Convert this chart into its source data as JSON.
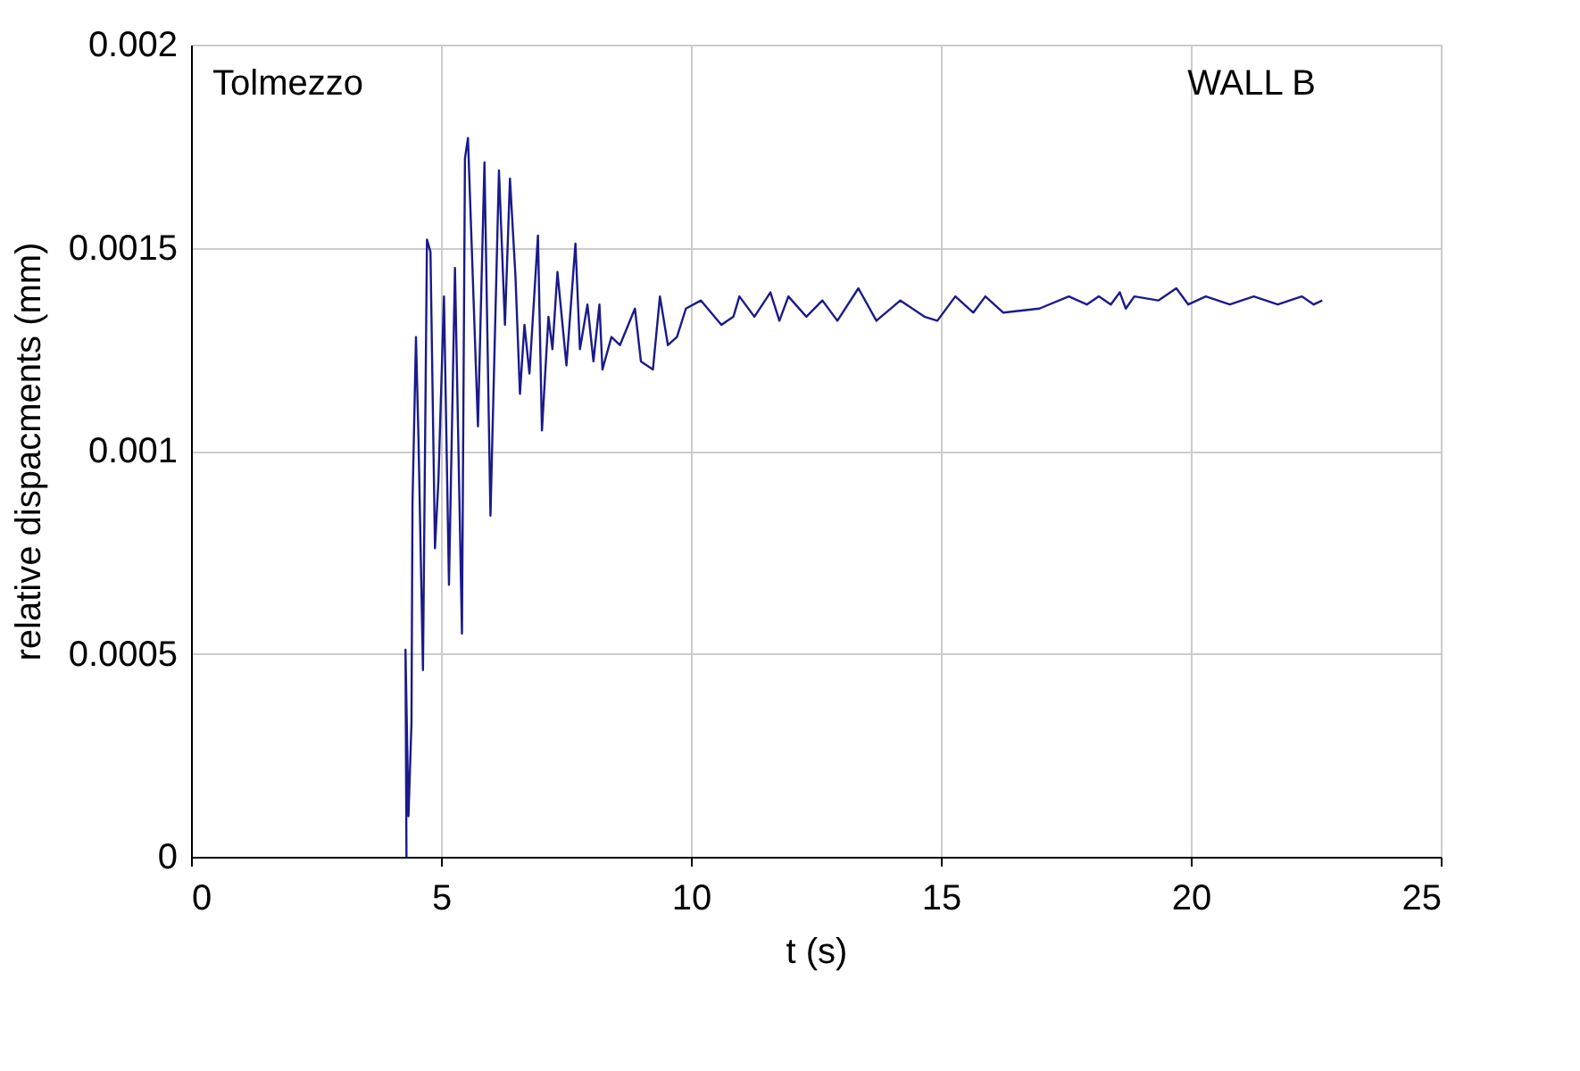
{
  "chart_data": {
    "type": "line",
    "xlabel": "t (s)",
    "ylabel": "relative dispacments (mm)",
    "annotations": [
      "Tolmezzo",
      "WALL B"
    ],
    "xlim": [
      0,
      25
    ],
    "xticks": [
      0,
      5,
      10,
      15,
      20,
      25
    ],
    "ylim": [
      0,
      0.002
    ],
    "yticks": [
      0,
      0.0005,
      0.001,
      0.0015,
      0.002
    ],
    "grid": true,
    "marker": "none",
    "line_style": "solid",
    "series": [
      {
        "color": "#1a1a8c",
        "x": [
          4.31,
          4.29,
          4.35,
          4.41,
          4.43,
          4.5,
          4.55,
          4.64,
          4.72,
          4.79,
          4.88,
          4.95,
          5.06,
          5.16,
          5.28,
          5.42,
          5.48,
          5.54,
          5.74,
          5.87,
          5.99,
          6.16,
          6.28,
          6.38,
          6.49,
          6.58,
          6.67,
          6.77,
          6.94,
          7.02,
          7.15,
          7.23,
          7.33,
          7.51,
          7.69,
          7.78,
          7.93,
          8.05,
          8.17,
          8.23,
          8.41,
          8.58,
          8.88,
          9.0,
          9.24,
          9.38,
          9.54,
          9.72,
          9.9,
          10.2,
          10.61,
          10.85,
          10.97,
          11.27,
          11.59,
          11.77,
          11.95,
          12.31,
          12.63,
          12.93,
          13.35,
          13.71,
          14.19,
          14.67,
          14.93,
          15.29,
          15.65,
          15.89,
          16.25,
          16.97,
          17.56,
          17.92,
          18.16,
          18.4,
          18.58,
          18.7,
          18.87,
          19.35,
          19.71,
          19.95,
          20.3,
          20.78,
          21.26,
          21.74,
          22.22,
          22.46,
          22.63
        ],
        "values": [
          0,
          0.00051,
          0.0001,
          0.00033,
          0.00087,
          0.00128,
          0.00103,
          0.00046,
          0.00152,
          0.00149,
          0.00076,
          0.00093,
          0.00138,
          0.00067,
          0.00145,
          0.00055,
          0.00172,
          0.00177,
          0.00106,
          0.00171,
          0.00084,
          0.00169,
          0.00131,
          0.00167,
          0.00143,
          0.00114,
          0.00131,
          0.00119,
          0.00153,
          0.00105,
          0.00133,
          0.00125,
          0.00144,
          0.00121,
          0.00151,
          0.00125,
          0.00136,
          0.00122,
          0.00136,
          0.0012,
          0.00128,
          0.00126,
          0.00135,
          0.00122,
          0.0012,
          0.00138,
          0.00126,
          0.00128,
          0.00135,
          0.00137,
          0.00131,
          0.00133,
          0.00138,
          0.00133,
          0.00139,
          0.00132,
          0.00138,
          0.00133,
          0.00137,
          0.00132,
          0.0014,
          0.00132,
          0.00137,
          0.00133,
          0.00132,
          0.00138,
          0.00134,
          0.00138,
          0.00134,
          0.00135,
          0.00138,
          0.00136,
          0.00138,
          0.00136,
          0.00139,
          0.00135,
          0.00138,
          0.00137,
          0.0014,
          0.00136,
          0.00138,
          0.00136,
          0.00138,
          0.00136,
          0.00138,
          0.00136,
          0.00137
        ]
      }
    ]
  }
}
